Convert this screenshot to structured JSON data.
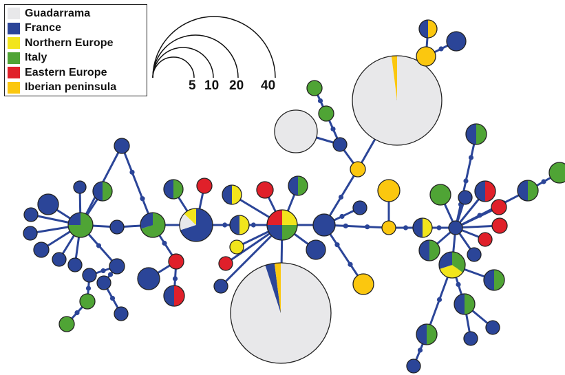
{
  "legend": {
    "items": [
      {
        "label": "Guadarrama",
        "color": "#e8e8ea"
      },
      {
        "label": "France",
        "color": "#2b4598"
      },
      {
        "label": "Northern Europe",
        "color": "#f2e51c"
      },
      {
        "label": "Italy",
        "color": "#4fa435"
      },
      {
        "label": "Eastern Europe",
        "color": "#e0202a"
      },
      {
        "label": "Iberian peninsula",
        "color": "#fbc70f"
      }
    ]
  },
  "size_scale": {
    "labels": [
      "5",
      "10",
      "20",
      "40"
    ]
  },
  "colors": {
    "edge": "#2b4598",
    "outline": "#222222"
  }
}
